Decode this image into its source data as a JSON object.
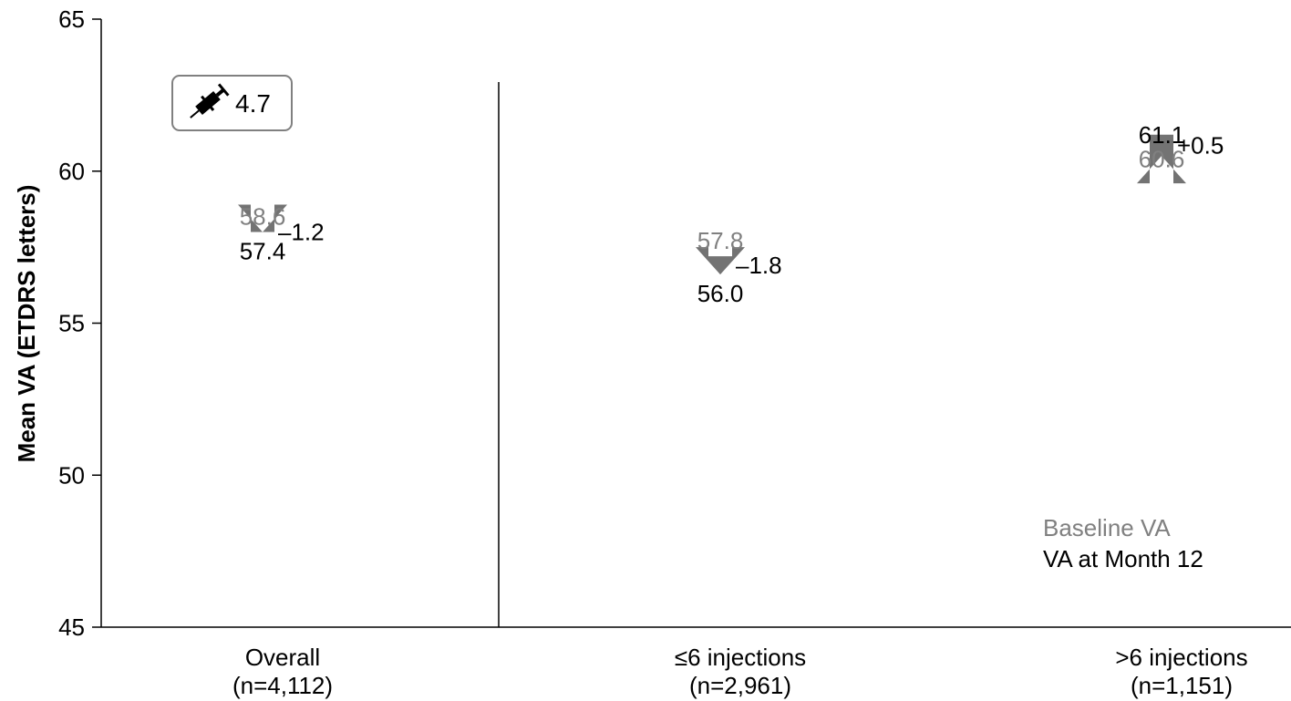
{
  "chart_data": {
    "type": "arrow-change",
    "ylabel": "Mean VA (ETDRS letters)",
    "ylim": [
      45,
      65
    ],
    "yticks": [
      45,
      50,
      55,
      60,
      65
    ],
    "categories": [
      {
        "label": "Overall",
        "n_label": "(n=4,112)",
        "baseline": "58.6",
        "month12": "57.4",
        "change": "–1.2"
      },
      {
        "label": "≤6 injections",
        "n_label": "(n=2,961)",
        "baseline": "57.8",
        "month12": "56.0",
        "change": "–1.8"
      },
      {
        "label": ">6 injections",
        "n_label": "(n=1,151)",
        "baseline": "60.6",
        "month12": "61.1",
        "change": "+0.5"
      }
    ],
    "injection_badge": {
      "icon": "syringe-icon",
      "value": "4.7"
    },
    "legend": {
      "placement": "bottom-right",
      "items": [
        {
          "label": "Baseline VA",
          "color": "#808080"
        },
        {
          "label": "VA at Month 12",
          "color": "#000000"
        }
      ]
    },
    "divider_after_category": 0,
    "grid": false,
    "colors": {
      "baseline": "#808080",
      "month12": "#000000",
      "arrow": "#737373",
      "axis": "#000000"
    }
  }
}
